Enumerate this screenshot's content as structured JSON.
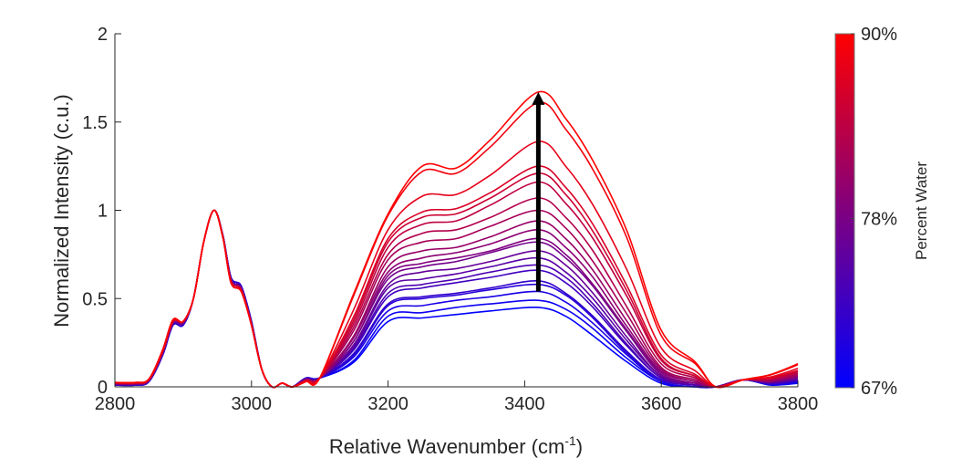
{
  "chart_data": {
    "type": "line",
    "xlabel": {
      "text": "Relative Wavenumber (cm",
      "sup": "-1",
      "close": ")"
    },
    "ylabel": "Normalized Intensity (c.u.)",
    "xlim": [
      2800,
      3800
    ],
    "ylim": [
      0,
      2
    ],
    "xticks": [
      "2800",
      "3000",
      "3200",
      "3400",
      "3600",
      "3800"
    ],
    "yticks": [
      "0",
      "0.5",
      "1",
      "1.5",
      "2"
    ],
    "grid": false,
    "colorbar": {
      "label": "Percent Water",
      "range": [
        67,
        90
      ],
      "ticks": [
        {
          "value": 90,
          "label": "90%"
        },
        {
          "value": 78,
          "label": "78%"
        },
        {
          "value": 67,
          "label": "67%"
        }
      ],
      "color_low": "#0000ff",
      "color_high": "#ff0000"
    },
    "arrow": {
      "x": 3420,
      "y_from": 0.54,
      "y_to": 1.67,
      "color": "#000000"
    },
    "x": [
      2800,
      2830,
      2850,
      2870,
      2885,
      2900,
      2915,
      2930,
      2945,
      2958,
      2970,
      2985,
      3000,
      3015,
      3030,
      3045,
      3060,
      3080,
      3100,
      3150,
      3200,
      3250,
      3300,
      3350,
      3420,
      3460,
      3500,
      3550,
      3600,
      3650,
      3680,
      3720,
      3760,
      3800
    ],
    "series": [
      {
        "y": [
          0.025,
          0.025,
          0.045,
          0.21,
          0.38,
          0.37,
          0.5,
          0.82,
          1.0,
          0.85,
          0.59,
          0.54,
          0.35,
          0.1,
          0.0,
          0.02,
          0.0,
          0.03,
          0.05,
          0.53,
          0.98,
          1.25,
          1.24,
          1.4,
          1.67,
          1.52,
          1.28,
          0.88,
          0.32,
          0.14,
          0,
          0.04,
          0.07,
          0.13
        ]
      },
      {
        "y": [
          0.025,
          0.025,
          0.045,
          0.21,
          0.38,
          0.37,
          0.5,
          0.82,
          1.0,
          0.85,
          0.59,
          0.54,
          0.35,
          0.1,
          0.0,
          0.02,
          0.0,
          0.03,
          0.05,
          0.52,
          0.97,
          1.22,
          1.21,
          1.36,
          1.61,
          1.46,
          1.23,
          0.84,
          0.29,
          0.13,
          0,
          0.04,
          0.067,
          0.125
        ]
      },
      {
        "y": [
          0.024,
          0.024,
          0.044,
          0.21,
          0.38,
          0.37,
          0.5,
          0.82,
          1.0,
          0.85,
          0.59,
          0.54,
          0.35,
          0.1,
          0.0,
          0.02,
          0.0,
          0.03,
          0.05,
          0.44,
          0.89,
          1.08,
          1.09,
          1.2,
          1.39,
          1.25,
          1.03,
          0.66,
          0.22,
          0.09,
          0,
          0.04,
          0.056,
          0.105
        ]
      },
      {
        "y": [
          0.023,
          0.023,
          0.043,
          0.2,
          0.37,
          0.37,
          0.5,
          0.82,
          1.0,
          0.85,
          0.59,
          0.54,
          0.35,
          0.1,
          0.0,
          0.02,
          0.0,
          0.035,
          0.05,
          0.4,
          0.84,
          0.99,
          1.01,
          1.1,
          1.25,
          1.13,
          0.92,
          0.57,
          0.18,
          0.07,
          0,
          0.04,
          0.05,
          0.093
        ]
      },
      {
        "y": [
          0.022,
          0.022,
          0.042,
          0.2,
          0.37,
          0.37,
          0.5,
          0.82,
          1.0,
          0.85,
          0.6,
          0.55,
          0.35,
          0.1,
          0.0,
          0.02,
          0.0,
          0.035,
          0.05,
          0.38,
          0.82,
          0.96,
          0.98,
          1.07,
          1.21,
          1.09,
          0.88,
          0.54,
          0.16,
          0.06,
          0,
          0.04,
          0.048,
          0.089
        ]
      },
      {
        "y": [
          0.021,
          0.021,
          0.042,
          0.2,
          0.37,
          0.37,
          0.5,
          0.82,
          1.0,
          0.85,
          0.6,
          0.55,
          0.35,
          0.1,
          0.0,
          0.02,
          0.0,
          0.035,
          0.05,
          0.36,
          0.79,
          0.92,
          0.94,
          1.03,
          1.16,
          1.04,
          0.84,
          0.51,
          0.15,
          0.06,
          0,
          0.04,
          0.045,
          0.084
        ]
      },
      {
        "y": [
          0.02,
          0.02,
          0.041,
          0.2,
          0.37,
          0.37,
          0.5,
          0.82,
          1.0,
          0.85,
          0.6,
          0.55,
          0.35,
          0.1,
          0.0,
          0.02,
          0.0,
          0.035,
          0.05,
          0.34,
          0.75,
          0.87,
          0.89,
          0.96,
          1.07,
          0.96,
          0.77,
          0.45,
          0.13,
          0.05,
          0,
          0.04,
          0.041,
          0.076
        ]
      },
      {
        "y": [
          0.02,
          0.02,
          0.04,
          0.2,
          0.37,
          0.37,
          0.5,
          0.82,
          1.0,
          0.85,
          0.6,
          0.55,
          0.35,
          0.1,
          0.0,
          0.02,
          0.0,
          0.04,
          0.05,
          0.32,
          0.72,
          0.82,
          0.84,
          0.91,
          1.0,
          0.9,
          0.71,
          0.41,
          0.11,
          0.04,
          0,
          0.04,
          0.037,
          0.07
        ]
      },
      {
        "y": [
          0.019,
          0.019,
          0.04,
          0.2,
          0.37,
          0.37,
          0.5,
          0.82,
          1.0,
          0.85,
          0.6,
          0.55,
          0.35,
          0.1,
          0.0,
          0.02,
          0.0,
          0.04,
          0.05,
          0.29,
          0.68,
          0.77,
          0.79,
          0.85,
          0.94,
          0.84,
          0.66,
          0.37,
          0.1,
          0.03,
          0,
          0.04,
          0.034,
          0.064
        ]
      },
      {
        "y": [
          0.018,
          0.018,
          0.039,
          0.2,
          0.37,
          0.37,
          0.5,
          0.82,
          1.0,
          0.85,
          0.6,
          0.55,
          0.35,
          0.1,
          0.0,
          0.02,
          0.0,
          0.04,
          0.05,
          0.28,
          0.65,
          0.73,
          0.76,
          0.81,
          0.89,
          0.79,
          0.62,
          0.34,
          0.09,
          0.03,
          0,
          0.04,
          0.032,
          0.06
        ]
      },
      {
        "y": [
          0.017,
          0.017,
          0.038,
          0.2,
          0.37,
          0.37,
          0.5,
          0.82,
          1.0,
          0.85,
          0.6,
          0.55,
          0.35,
          0.1,
          0.0,
          0.02,
          0.0,
          0.04,
          0.05,
          0.26,
          0.63,
          0.7,
          0.73,
          0.77,
          0.84,
          0.75,
          0.58,
          0.32,
          0.08,
          0.02,
          0,
          0.04,
          0.029,
          0.055
        ]
      },
      {
        "y": [
          0.016,
          0.016,
          0.037,
          0.2,
          0.36,
          0.36,
          0.5,
          0.82,
          1.0,
          0.85,
          0.6,
          0.55,
          0.35,
          0.1,
          0.0,
          0.02,
          0.0,
          0.04,
          0.05,
          0.26,
          0.61,
          0.68,
          0.71,
          0.76,
          0.82,
          0.73,
          0.57,
          0.31,
          0.07,
          0.02,
          0,
          0.04,
          0.029,
          0.054
        ]
      },
      {
        "y": [
          0.015,
          0.015,
          0.036,
          0.19,
          0.36,
          0.36,
          0.5,
          0.82,
          1.0,
          0.86,
          0.61,
          0.56,
          0.36,
          0.1,
          0.0,
          0.02,
          0.0,
          0.045,
          0.05,
          0.24,
          0.58,
          0.65,
          0.67,
          0.71,
          0.77,
          0.69,
          0.53,
          0.28,
          0.06,
          0.02,
          0,
          0.04,
          0.026,
          0.05
        ]
      },
      {
        "y": [
          0.014,
          0.014,
          0.035,
          0.19,
          0.36,
          0.36,
          0.5,
          0.82,
          1.0,
          0.86,
          0.61,
          0.56,
          0.36,
          0.1,
          0.0,
          0.02,
          0.0,
          0.045,
          0.05,
          0.23,
          0.56,
          0.61,
          0.64,
          0.68,
          0.73,
          0.65,
          0.5,
          0.26,
          0.06,
          0.01,
          0,
          0.04,
          0.024,
          0.045
        ]
      },
      {
        "y": [
          0.013,
          0.013,
          0.034,
          0.19,
          0.36,
          0.36,
          0.5,
          0.82,
          1.0,
          0.86,
          0.61,
          0.56,
          0.36,
          0.1,
          0.0,
          0.02,
          0.0,
          0.045,
          0.05,
          0.22,
          0.53,
          0.58,
          0.61,
          0.65,
          0.69,
          0.62,
          0.47,
          0.24,
          0.05,
          0.01,
          0,
          0.04,
          0.022,
          0.042
        ]
      },
      {
        "y": [
          0.012,
          0.012,
          0.033,
          0.19,
          0.36,
          0.36,
          0.5,
          0.82,
          1.0,
          0.86,
          0.61,
          0.56,
          0.36,
          0.1,
          0.0,
          0.02,
          0.0,
          0.045,
          0.05,
          0.21,
          0.51,
          0.56,
          0.59,
          0.62,
          0.66,
          0.59,
          0.45,
          0.23,
          0.05,
          0.01,
          0,
          0.04,
          0.02,
          0.039
        ]
      },
      {
        "y": [
          0.011,
          0.011,
          0.032,
          0.18,
          0.35,
          0.35,
          0.5,
          0.82,
          1.0,
          0.86,
          0.62,
          0.57,
          0.37,
          0.1,
          0.0,
          0.02,
          0.0,
          0.05,
          0.05,
          0.19,
          0.47,
          0.51,
          0.53,
          0.56,
          0.6,
          0.53,
          0.4,
          0.2,
          0.04,
          0.01,
          0,
          0.04,
          0.017,
          0.033
        ]
      },
      {
        "y": [
          0.011,
          0.011,
          0.031,
          0.18,
          0.35,
          0.35,
          0.5,
          0.82,
          1.0,
          0.86,
          0.62,
          0.57,
          0.37,
          0.1,
          0.0,
          0.02,
          0.0,
          0.05,
          0.05,
          0.18,
          0.46,
          0.5,
          0.52,
          0.55,
          0.58,
          0.52,
          0.39,
          0.19,
          0.04,
          0.01,
          0,
          0.04,
          0.017,
          0.032
        ]
      },
      {
        "y": [
          0.01,
          0.01,
          0.03,
          0.18,
          0.35,
          0.35,
          0.5,
          0.82,
          1.0,
          0.86,
          0.62,
          0.57,
          0.37,
          0.1,
          0.0,
          0.02,
          0.0,
          0.05,
          0.05,
          0.17,
          0.43,
          0.46,
          0.49,
          0.51,
          0.54,
          0.48,
          0.36,
          0.18,
          0.03,
          0.0,
          0,
          0.04,
          0.015,
          0.029
        ]
      },
      {
        "y": [
          0.01,
          0.01,
          0.03,
          0.18,
          0.35,
          0.35,
          0.5,
          0.82,
          1.0,
          0.86,
          0.62,
          0.57,
          0.37,
          0.1,
          0.0,
          0.02,
          0.0,
          0.05,
          0.05,
          0.15,
          0.4,
          0.42,
          0.45,
          0.47,
          0.49,
          0.44,
          0.33,
          0.16,
          0.03,
          0.0,
          0,
          0.04,
          0.012,
          0.024
        ]
      },
      {
        "y": [
          0.01,
          0.01,
          0.03,
          0.18,
          0.35,
          0.35,
          0.5,
          0.82,
          1.0,
          0.86,
          0.62,
          0.57,
          0.37,
          0.1,
          0.0,
          0.02,
          0.0,
          0.05,
          0.05,
          0.14,
          0.37,
          0.39,
          0.41,
          0.43,
          0.45,
          0.4,
          0.29,
          0.14,
          0.02,
          0.0,
          0,
          0.04,
          0.01,
          0.02
        ]
      }
    ]
  }
}
